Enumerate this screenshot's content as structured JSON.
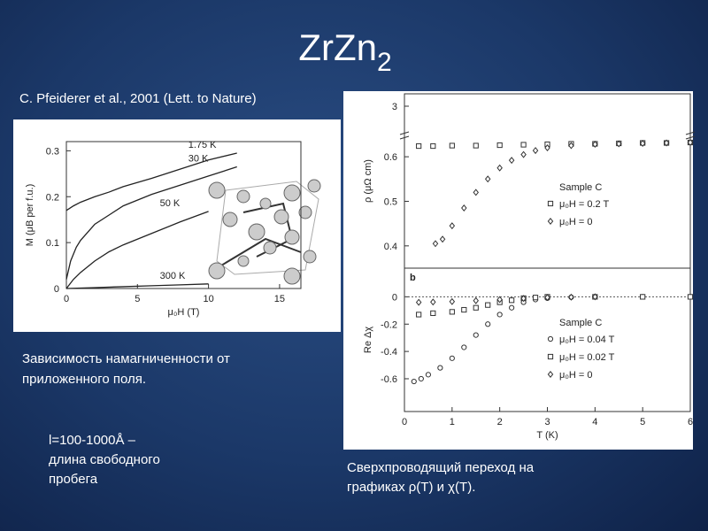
{
  "slide": {
    "title": "ZrZn",
    "title_subscript": "2",
    "subtitle": "C. Pfeiderer et al., 2001 (Lett. to Nature)",
    "caption_left": [
      "Зависимость намагниченности от",
      "приложенного поля."
    ],
    "note": [
      "l=100-1000Å –",
      "длина свободного",
      "пробега"
    ],
    "caption_right": [
      "Сверхпроводящий переход на",
      "графиках ρ(T) и χ(T)."
    ]
  },
  "chart_data": [
    {
      "type": "line",
      "xlabel": "μ₀H (T)",
      "ylabel": "M (μB per f.u.)",
      "xlim": [
        0,
        16.5
      ],
      "xticks": [
        0,
        5,
        10,
        15
      ],
      "ylim": [
        0,
        0.32
      ],
      "yticks": [
        0,
        0.1,
        0.2,
        0.3
      ],
      "series": [
        {
          "name": "1.75 K",
          "color": "#222222",
          "x": [
            0,
            0.5,
            1,
            2,
            3,
            4,
            6,
            8,
            10,
            12
          ],
          "values": [
            0.17,
            0.18,
            0.188,
            0.2,
            0.21,
            0.222,
            0.24,
            0.26,
            0.28,
            0.295
          ]
        },
        {
          "name": "30 K",
          "color": "#222222",
          "x": [
            0,
            0.3,
            0.7,
            1,
            2,
            3,
            4,
            6,
            8,
            10,
            12
          ],
          "values": [
            0.02,
            0.06,
            0.09,
            0.105,
            0.14,
            0.16,
            0.18,
            0.205,
            0.225,
            0.245,
            0.265
          ]
        },
        {
          "name": "50 K",
          "color": "#222222",
          "x": [
            0,
            0.5,
            1,
            2,
            3,
            4,
            6,
            8,
            10
          ],
          "values": [
            0,
            0.02,
            0.035,
            0.06,
            0.08,
            0.095,
            0.12,
            0.145,
            0.168
          ]
        },
        {
          "name": "300 K",
          "color": "#222222",
          "x": [
            0,
            2,
            4,
            6,
            8,
            10
          ],
          "values": [
            0,
            0.002,
            0.004,
            0.006,
            0.008,
            0.01
          ]
        }
      ]
    },
    {
      "type": "scatter",
      "ylabel": "ρ (μΩ cm)",
      "xlim": [
        0,
        6
      ],
      "ylim": [
        0.35,
        0.634
      ],
      "yticks": [
        0.4,
        0.5,
        0.6
      ],
      "ybreak_ticks": [
        3
      ],
      "legend_title": "Sample C",
      "series": [
        {
          "name": "μ₀H = 0.2 T",
          "marker": "square",
          "color": "#333333",
          "x": [
            0.3,
            0.6,
            1,
            1.5,
            2,
            2.5,
            3,
            3.5,
            4,
            4.5,
            5,
            5.5,
            6
          ],
          "values": [
            0.624,
            0.624,
            0.625,
            0.625,
            0.626,
            0.627,
            0.628,
            0.629,
            0.629,
            0.63,
            0.631,
            0.631,
            0.632
          ]
        },
        {
          "name": "μ₀H = 0",
          "marker": "diamond",
          "color": "#333333",
          "x": [
            0.65,
            0.8,
            1,
            1.25,
            1.5,
            1.75,
            2,
            2.25,
            2.5,
            2.75,
            3,
            3.5,
            4,
            4.5,
            5,
            5.5,
            6
          ],
          "values": [
            0.405,
            0.415,
            0.445,
            0.485,
            0.52,
            0.55,
            0.575,
            0.592,
            0.605,
            0.614,
            0.62,
            0.625,
            0.628,
            0.629,
            0.63,
            0.631,
            0.632
          ]
        }
      ]
    },
    {
      "type": "scatter",
      "xlabel": "T (K)",
      "ylabel": "Re Δχ",
      "panel_label": "b",
      "zero_line": true,
      "xlim": [
        0,
        6
      ],
      "xticks": [
        0,
        1,
        2,
        3,
        4,
        5,
        6
      ],
      "ylim": [
        -0.84,
        0.21
      ],
      "yticks": [
        0,
        -0.2,
        -0.4,
        -0.6
      ],
      "legend_title": "Sample C",
      "series": [
        {
          "name": "μ₀H = 0.04 T",
          "marker": "circle",
          "color": "#333333",
          "x": [
            0.2,
            0.35,
            0.5,
            0.75,
            1,
            1.25,
            1.5,
            1.75,
            2,
            2.25,
            2.5,
            2.75,
            3,
            3.5,
            4,
            5,
            6
          ],
          "values": [
            -0.62,
            -0.6,
            -0.57,
            -0.52,
            -0.45,
            -0.37,
            -0.28,
            -0.2,
            -0.13,
            -0.08,
            -0.04,
            -0.02,
            -0.01,
            -0.003,
            0,
            0,
            0
          ]
        },
        {
          "name": "μ₀H = 0.02 T",
          "marker": "square",
          "color": "#333333",
          "x": [
            0.3,
            0.6,
            1,
            1.25,
            1.5,
            1.75,
            2,
            2.25,
            2.5,
            2.75,
            3,
            4,
            5,
            6
          ],
          "values": [
            -0.13,
            -0.12,
            -0.11,
            -0.095,
            -0.08,
            -0.06,
            -0.04,
            -0.025,
            -0.01,
            -0.005,
            0,
            0,
            0,
            0
          ]
        },
        {
          "name": "μ₀H = 0",
          "marker": "diamond",
          "color": "#333333",
          "x": [
            0.3,
            0.6,
            1,
            1.5,
            2,
            2.5,
            3,
            3.5,
            4
          ],
          "values": [
            -0.04,
            -0.038,
            -0.035,
            -0.028,
            -0.02,
            -0.012,
            -0.005,
            -0.002,
            0
          ]
        }
      ]
    }
  ]
}
